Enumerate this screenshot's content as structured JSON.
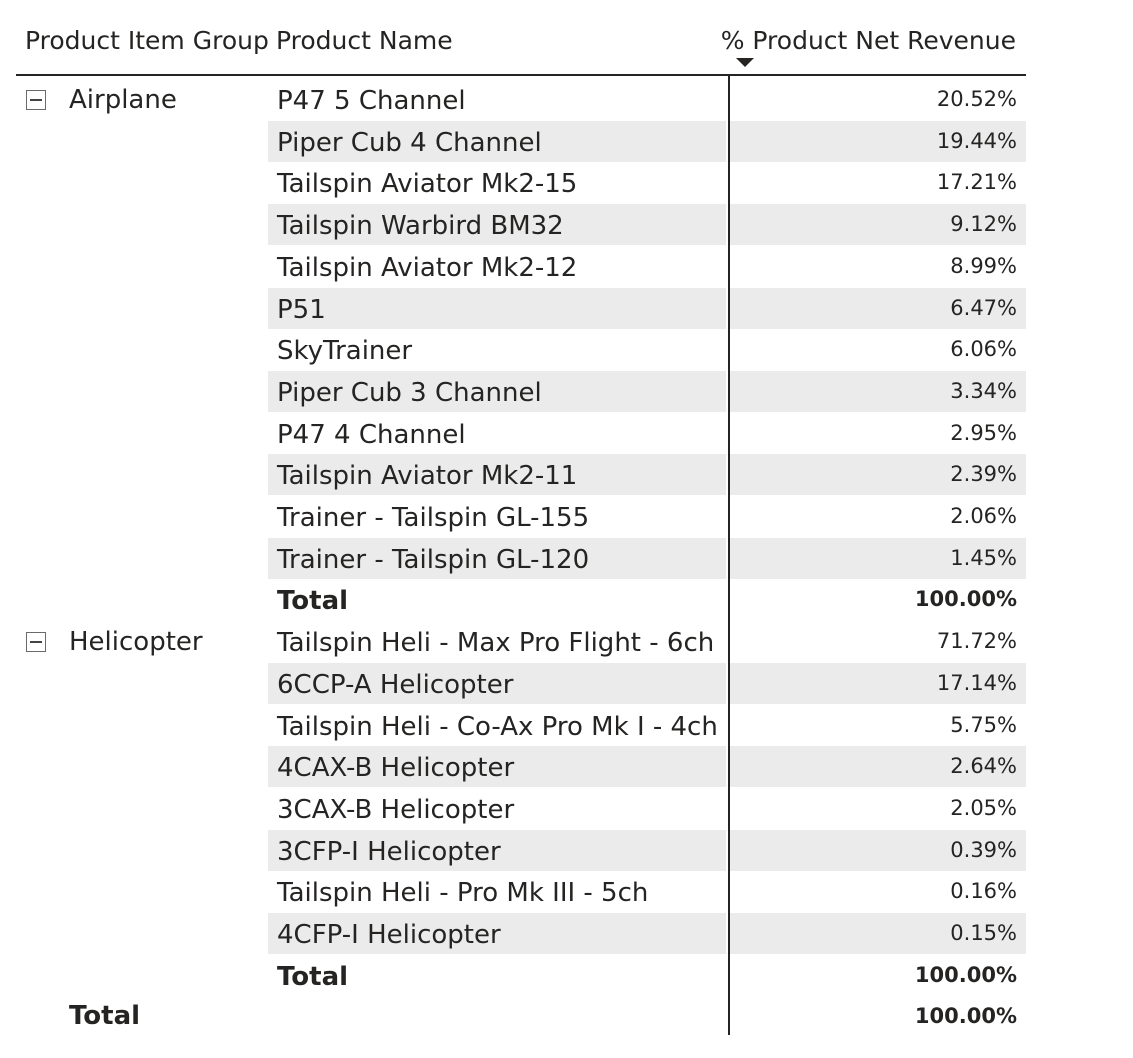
{
  "headers": {
    "group": "Product Item Group",
    "name": "Product Name",
    "value": "% Product Net Revenue"
  },
  "groups": [
    {
      "label": "Airplane",
      "rows": [
        {
          "name": "P47 5 Channel",
          "value": "20.52%"
        },
        {
          "name": "Piper Cub 4 Channel",
          "value": "19.44%"
        },
        {
          "name": "Tailspin Aviator Mk2-15",
          "value": "17.21%"
        },
        {
          "name": "Tailspin Warbird BM32",
          "value": "9.12%"
        },
        {
          "name": "Tailspin Aviator Mk2-12",
          "value": "8.99%"
        },
        {
          "name": "P51",
          "value": "6.47%"
        },
        {
          "name": "SkyTrainer",
          "value": "6.06%"
        },
        {
          "name": "Piper Cub 3 Channel",
          "value": "3.34%"
        },
        {
          "name": "P47 4 Channel",
          "value": "2.95%"
        },
        {
          "name": "Tailspin Aviator Mk2-11",
          "value": "2.39%"
        },
        {
          "name": "Trainer - Tailspin GL-155",
          "value": "2.06%"
        },
        {
          "name": "Trainer - Tailspin GL-120",
          "value": "1.45%"
        }
      ],
      "total_label": "Total",
      "total_value": "100.00%"
    },
    {
      "label": "Helicopter",
      "rows": [
        {
          "name": "Tailspin Heli - Max Pro Flight - 6ch",
          "value": "71.72%"
        },
        {
          "name": "6CCP-A Helicopter",
          "value": "17.14%"
        },
        {
          "name": "Tailspin Heli - Co-Ax Pro Mk I - 4ch",
          "value": "5.75%"
        },
        {
          "name": "4CAX-B Helicopter",
          "value": "2.64%"
        },
        {
          "name": "3CAX-B Helicopter",
          "value": "2.05%"
        },
        {
          "name": "3CFP-I Helicopter",
          "value": "0.39%"
        },
        {
          "name": "Tailspin Heli - Pro Mk III - 5ch",
          "value": "0.16%"
        },
        {
          "name": "4CFP-I Helicopter",
          "value": "0.15%"
        }
      ],
      "total_label": "Total",
      "total_value": "100.00%"
    }
  ],
  "grand_total": {
    "label": "Total",
    "value": "100.00%"
  }
}
